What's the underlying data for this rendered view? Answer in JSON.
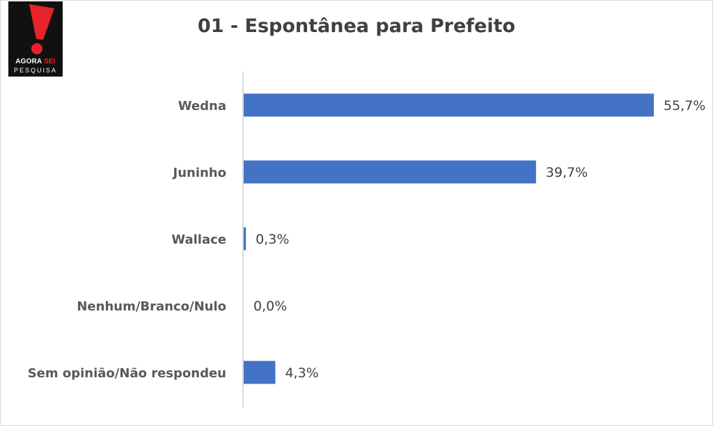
{
  "logo": {
    "line1_a": "AGORA",
    "line1_b": "SEI",
    "line2": "PESQUISA"
  },
  "chart_data": {
    "type": "bar",
    "orientation": "horizontal",
    "title": "01 - Espontânea para Prefeito",
    "categories": [
      "Wedna",
      "Juninho",
      "Wallace",
      "Nenhum/Branco/Nulo",
      "Sem opinião/Não respondeu"
    ],
    "values": [
      55.7,
      39.7,
      0.3,
      0.0,
      4.3
    ],
    "value_labels": [
      "55,7%",
      "39,7%",
      "0,3%",
      "0,0%",
      "4,3%"
    ],
    "unit": "%",
    "xlim": [
      0,
      60
    ],
    "grid": false,
    "legend": "none",
    "bar_color": "#4472c4"
  }
}
